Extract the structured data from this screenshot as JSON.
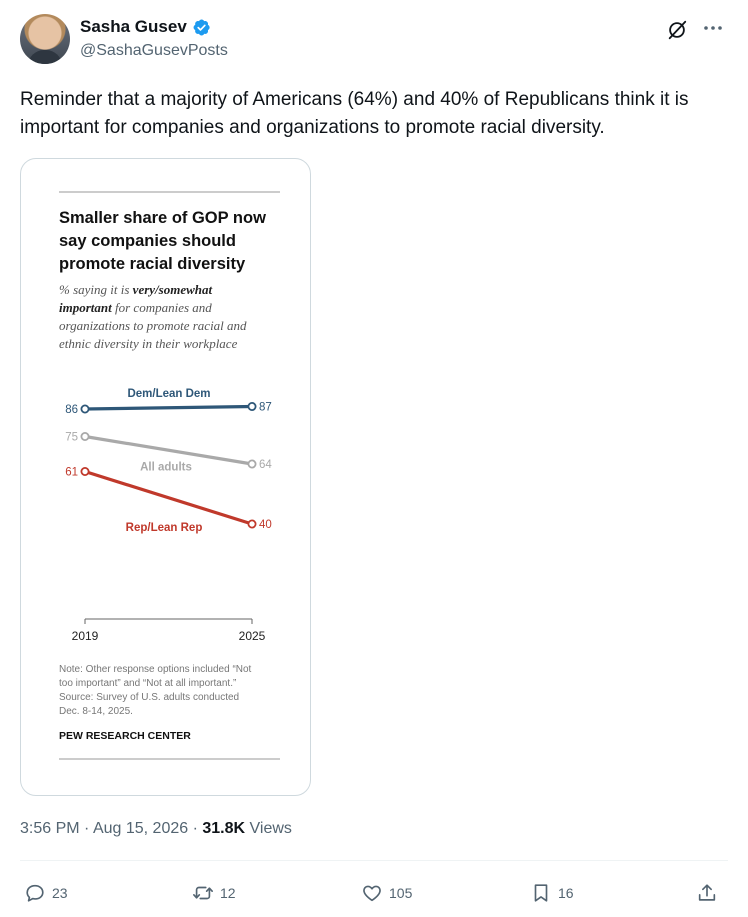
{
  "author": {
    "name": "Sasha Gusev",
    "handle": "@SashaGusevPosts"
  },
  "icons": {
    "verified": "verified-badge-icon",
    "grok": "grok-icon",
    "more": "more-icon",
    "reply": "reply-icon",
    "retweet": "retweet-icon",
    "like": "heart-icon",
    "bookmark": "bookmark-icon",
    "share": "share-icon"
  },
  "colors": {
    "verified": "#1d9bf0",
    "dem": "#2e5778",
    "all": "#a9a9a9",
    "rep": "#c0392b",
    "text_secondary": "#536471"
  },
  "tweet": {
    "text": "Reminder that a majority of Americans (64%) and 40% of Republicans think it is important for companies and organizations to promote racial diversity."
  },
  "chart_card": {
    "title_lines": [
      "Smaller share of GOP now",
      "say companies should",
      "promote racial diversity"
    ],
    "subtitle_parts": [
      {
        "text": "% saying it is ",
        "bold": false
      },
      {
        "text": "very/somewhat",
        "bold": true
      }
    ],
    "subtitle_line2_bold": "important",
    "subtitle_line2_rest": " for companies and",
    "subtitle_line3": "organizations to promote racial and",
    "subtitle_line4": "ethnic diversity in their workplace",
    "note_lines": [
      "Note: Other response options included “Not",
      "too important” and “Not at all important.”",
      "Source: Survey of U.S. adults conducted",
      "Dec. 8-14, 2025."
    ],
    "source_org": "PEW RESEARCH CENTER"
  },
  "chart_data": {
    "type": "line",
    "x": [
      "2019",
      "2025"
    ],
    "series": [
      {
        "name": "Dem/Lean Dem",
        "values": [
          86,
          87
        ],
        "color": "#2e5778"
      },
      {
        "name": "All adults",
        "values": [
          75,
          64
        ],
        "color": "#a9a9a9"
      },
      {
        "name": "Rep/Lean Rep",
        "values": [
          61,
          40
        ],
        "color": "#c0392b"
      }
    ],
    "ylim": [
      0,
      100
    ],
    "grid": false
  },
  "meta": {
    "time": "3:56 PM",
    "separator": " · ",
    "date": "Aug 15, 2026",
    "views_count": "31.8K",
    "views_label": "Views"
  },
  "actions": {
    "replies": "23",
    "retweets": "12",
    "likes": "105",
    "bookmarks": "16"
  }
}
